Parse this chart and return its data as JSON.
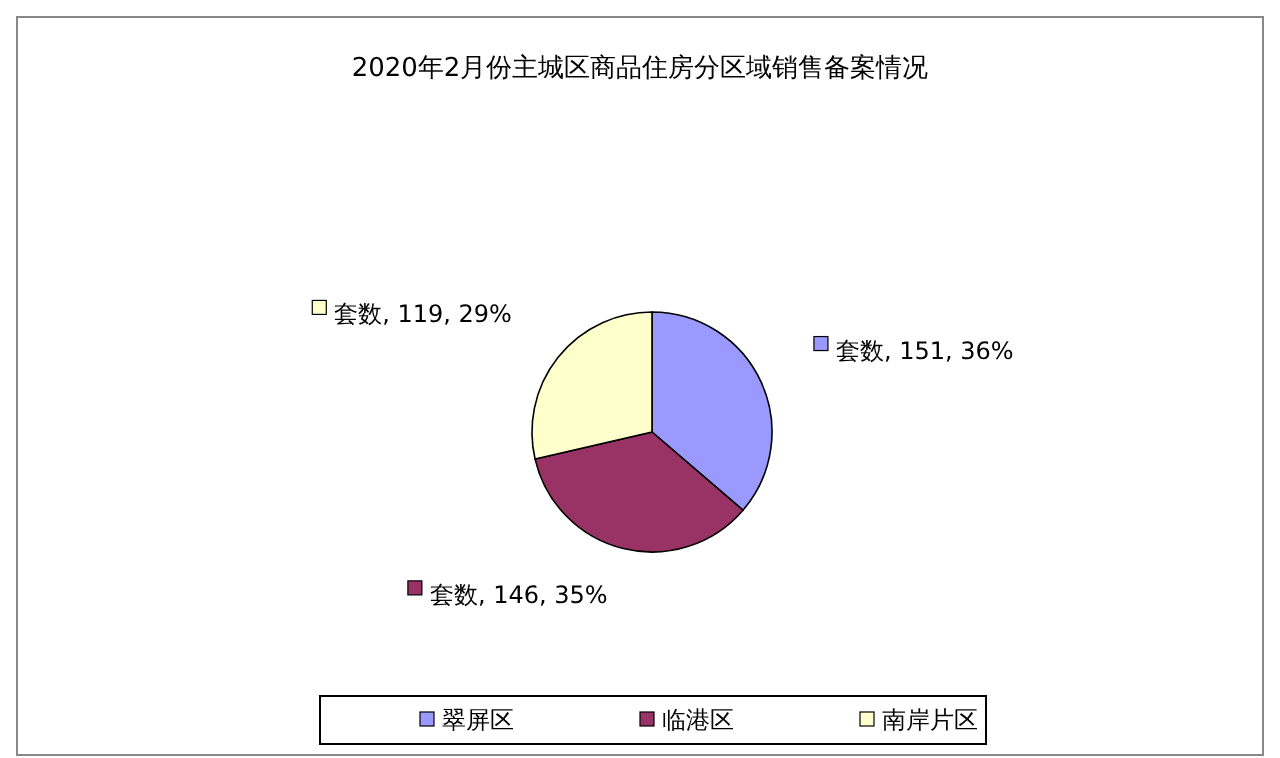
{
  "chart_data": {
    "type": "pie",
    "title": "2020年2月份主城区商品住房分区域销售备案情况",
    "categories": [
      "翠屏区",
      "临港区",
      "南岸片区"
    ],
    "series": [
      {
        "values": [
          151,
          146,
          119
        ],
        "value_labels": [
          "套数, 151, 36%",
          "套数, 146, 35%",
          "套数, 119, 29%"
        ]
      }
    ],
    "colors": [
      "#9999ff",
      "#993366",
      "#ffffcc"
    ],
    "legend": "bottom",
    "data_labels": true
  }
}
